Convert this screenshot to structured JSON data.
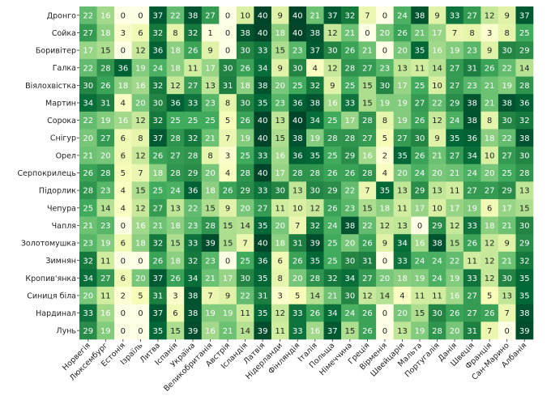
{
  "chart_data": {
    "type": "heatmap",
    "title": "",
    "xlabel": "",
    "ylabel": "",
    "value_range": [
      0,
      40
    ],
    "rows": [
      "Дронго",
      "Сойка",
      "Боривітер",
      "Галка",
      "Віялохвістка",
      "Мартин",
      "Сорока",
      "Снігур",
      "Орел",
      "Серпокрилець",
      "Підорлик",
      "Чепура",
      "Чапля",
      "Золотомушка",
      "Зимнян",
      "Кропив'янка",
      "Синиця біла",
      "Нардинал",
      "Лунь"
    ],
    "columns": [
      "Норвегія",
      "Люксембург",
      "Естонія",
      "Ізраїль",
      "Литва",
      "Іспанія",
      "Україна",
      "Великобританія",
      "Австрія",
      "Ісландія",
      "Латвія",
      "Нідерланди",
      "Фінляндія",
      "Італія",
      "Польща",
      "Німеччина",
      "Греція",
      "Вірменія",
      "Швейцарія",
      "Мальта",
      "Португалія",
      "Данія",
      "Швеція",
      "Франція",
      "Сан-Марино",
      "Албанія"
    ],
    "values": [
      [
        22,
        16,
        0,
        0,
        37,
        22,
        38,
        27,
        0,
        10,
        40,
        9,
        40,
        21,
        37,
        32,
        7,
        0,
        24,
        38,
        9,
        33,
        27,
        12,
        9,
        37
      ],
      [
        27,
        18,
        3,
        6,
        32,
        8,
        32,
        1,
        0,
        38,
        40,
        18,
        40,
        38,
        12,
        21,
        0,
        20,
        26,
        21,
        17,
        7,
        8,
        3,
        8,
        25
      ],
      [
        17,
        15,
        0,
        12,
        36,
        18,
        26,
        9,
        0,
        30,
        33,
        15,
        23,
        37,
        30,
        26,
        21,
        0,
        20,
        35,
        16,
        19,
        23,
        9,
        30,
        29
      ],
      [
        22,
        28,
        36,
        19,
        24,
        18,
        11,
        17,
        30,
        26,
        34,
        9,
        30,
        4,
        12,
        28,
        27,
        23,
        13,
        11,
        14,
        27,
        31,
        26,
        22,
        14
      ],
      [
        30,
        26,
        18,
        16,
        32,
        12,
        27,
        13,
        31,
        18,
        38,
        20,
        25,
        32,
        9,
        25,
        15,
        30,
        17,
        25,
        10,
        27,
        23,
        21,
        19,
        28
      ],
      [
        34,
        31,
        4,
        20,
        30,
        36,
        33,
        23,
        8,
        30,
        35,
        23,
        36,
        38,
        16,
        33,
        15,
        19,
        19,
        27,
        22,
        29,
        38,
        21,
        38,
        36
      ],
      [
        22,
        19,
        16,
        12,
        32,
        25,
        25,
        25,
        5,
        26,
        40,
        13,
        40,
        34,
        25,
        17,
        28,
        8,
        19,
        26,
        12,
        24,
        38,
        8,
        30,
        32
      ],
      [
        20,
        27,
        6,
        8,
        37,
        28,
        32,
        21,
        7,
        19,
        40,
        15,
        38,
        19,
        28,
        28,
        27,
        5,
        27,
        30,
        9,
        35,
        36,
        18,
        22,
        38
      ],
      [
        21,
        20,
        6,
        12,
        26,
        27,
        28,
        8,
        3,
        25,
        33,
        16,
        36,
        35,
        25,
        29,
        16,
        2,
        35,
        26,
        21,
        27,
        34,
        10,
        27,
        30
      ],
      [
        26,
        28,
        5,
        7,
        18,
        28,
        29,
        20,
        4,
        28,
        40,
        17,
        28,
        28,
        26,
        26,
        28,
        4,
        20,
        24,
        20,
        21,
        24,
        20,
        25,
        28
      ],
      [
        28,
        23,
        4,
        15,
        25,
        24,
        36,
        18,
        26,
        29,
        33,
        30,
        13,
        30,
        29,
        22,
        7,
        35,
        13,
        29,
        13,
        11,
        27,
        27,
        29,
        13
      ],
      [
        25,
        14,
        4,
        12,
        27,
        13,
        22,
        15,
        9,
        20,
        27,
        11,
        10,
        12,
        26,
        23,
        15,
        18,
        11,
        17,
        10,
        17,
        19,
        6,
        17,
        15
      ],
      [
        21,
        23,
        0,
        16,
        21,
        18,
        23,
        28,
        15,
        14,
        35,
        20,
        7,
        32,
        24,
        38,
        22,
        12,
        13,
        0,
        29,
        12,
        33,
        18,
        21,
        30
      ],
      [
        23,
        19,
        6,
        18,
        32,
        15,
        33,
        39,
        15,
        7,
        40,
        18,
        31,
        39,
        25,
        20,
        26,
        9,
        34,
        16,
        38,
        15,
        26,
        12,
        9,
        29
      ],
      [
        32,
        11,
        0,
        0,
        26,
        18,
        32,
        23,
        0,
        25,
        36,
        6,
        26,
        35,
        25,
        30,
        31,
        0,
        33,
        24,
        24,
        22,
        11,
        12,
        21,
        32
      ],
      [
        34,
        27,
        6,
        20,
        37,
        26,
        34,
        21,
        17,
        30,
        35,
        8,
        20,
        28,
        32,
        34,
        27,
        20,
        18,
        19,
        24,
        19,
        33,
        12,
        30,
        35
      ],
      [
        20,
        11,
        2,
        5,
        31,
        3,
        38,
        7,
        9,
        22,
        31,
        3,
        5,
        14,
        21,
        30,
        12,
        14,
        4,
        11,
        11,
        16,
        27,
        5,
        13,
        35
      ],
      [
        33,
        16,
        0,
        0,
        37,
        6,
        38,
        19,
        19,
        11,
        35,
        12,
        33,
        26,
        34,
        24,
        26,
        0,
        20,
        15,
        30,
        26,
        27,
        26,
        7,
        38
      ],
      [
        29,
        19,
        0,
        0,
        35,
        15,
        39,
        16,
        21,
        14,
        39,
        11,
        33,
        16,
        37,
        15,
        26,
        0,
        13,
        19,
        28,
        20,
        31,
        7,
        0,
        39
      ]
    ]
  }
}
